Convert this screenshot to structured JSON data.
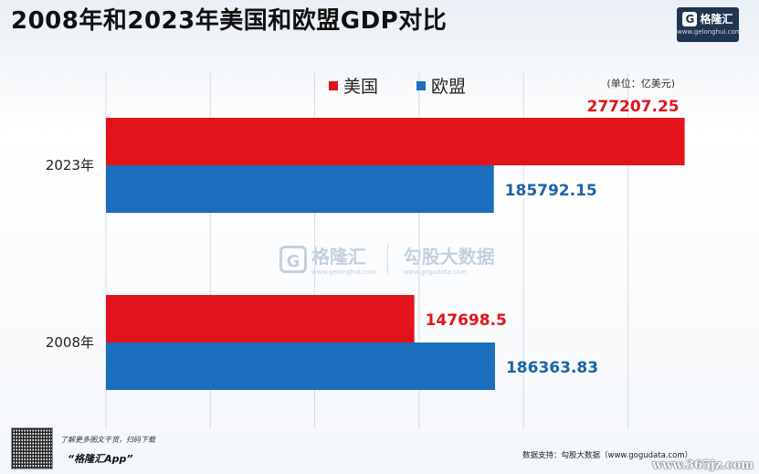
{
  "title": "2008年和2023年美国和欧盟GDP对比",
  "logo": {
    "name": "格隆汇",
    "mark": "G",
    "url": "www.gelonghui.com"
  },
  "unit": "(单位：亿美元)",
  "colors": {
    "us": "#e3131b",
    "eu": "#1b6dbd",
    "us_label": "#e3131b",
    "eu_label": "#1b64a8",
    "grid": "#d6dbe0"
  },
  "chart_data": {
    "type": "bar",
    "orientation": "horizontal",
    "categories": [
      "2023年",
      "2008年"
    ],
    "series": [
      {
        "name": "美国",
        "values": [
          277207.25,
          147698.5
        ],
        "labels": [
          "277207.25",
          "147698.5"
        ]
      },
      {
        "name": "欧盟",
        "values": [
          185792.15,
          186363.83
        ],
        "labels": [
          "185792.15",
          "186363.83"
        ]
      }
    ],
    "xlim": [
      0,
      280000
    ],
    "grid": true,
    "legend_position": "top"
  },
  "watermark": {
    "brand": "格隆汇",
    "brand_url": "www.gelonghui.com",
    "partner": "勾股大数据",
    "partner_url": "www.gogudata.com"
  },
  "footer": {
    "qr_caption": "了解更多图文干货，扫码下载",
    "app_name": "“格隆汇App”",
    "source": "数据支持：勾股大数据（www.gogudata.com）",
    "corner_mark": "www.365jz.com"
  }
}
